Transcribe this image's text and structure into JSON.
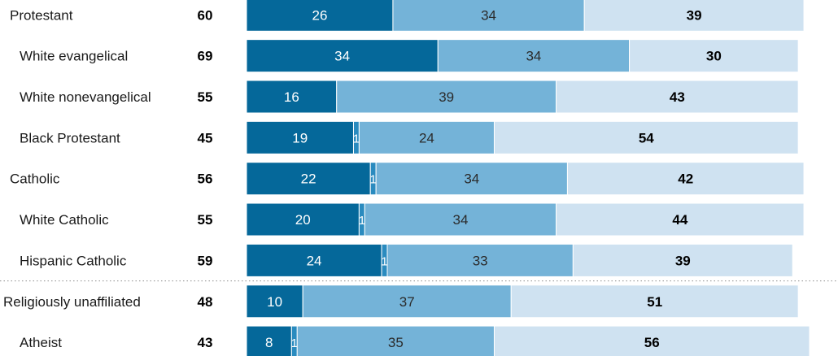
{
  "chart_data": {
    "type": "bar",
    "orientation": "horizontal",
    "stacked": true,
    "categories": [
      "Protestant",
      "White evangelical",
      "White nonevangelical",
      "Black Protestant",
      "Catholic",
      "White Catholic",
      "Hispanic Catholic",
      "Religiously unaffiliated",
      "Atheist"
    ],
    "indented": [
      false,
      true,
      true,
      true,
      false,
      true,
      true,
      false,
      true
    ],
    "net": [
      "60",
      "69",
      "55",
      "45",
      "56",
      "55",
      "59",
      "48",
      "43"
    ],
    "series": [
      {
        "values": [
          26,
          34,
          16,
          19,
          22,
          20,
          24,
          10,
          8
        ]
      },
      {
        "values": [
          null,
          null,
          null,
          1,
          1,
          1,
          1,
          null,
          1
        ]
      },
      {
        "values": [
          34,
          34,
          39,
          24,
          34,
          34,
          33,
          37,
          35
        ]
      },
      {
        "values": [
          39,
          30,
          43,
          54,
          42,
          44,
          39,
          51,
          56
        ]
      }
    ],
    "segment_labels": [
      [
        "26",
        "",
        "34",
        "39"
      ],
      [
        "34",
        "",
        "34",
        "30"
      ],
      [
        "16",
        "",
        "39",
        "43"
      ],
      [
        "19",
        "1",
        "24",
        "54"
      ],
      [
        "22",
        "1",
        "34",
        "42"
      ],
      [
        "20",
        "1",
        "34",
        "44"
      ],
      [
        "24",
        "1",
        "33",
        "39"
      ],
      [
        "10",
        "",
        "37",
        "51"
      ],
      [
        "8",
        "1",
        "35",
        "56"
      ]
    ],
    "colors": [
      "#05689a",
      "#2a8bbf",
      "#74b3d8",
      "#cfe2f1"
    ],
    "label_colors": [
      "#ffffff",
      "#ffffff",
      "#2b2b2b",
      "#000000"
    ],
    "separator_after_index": 6,
    "grid": false
  }
}
